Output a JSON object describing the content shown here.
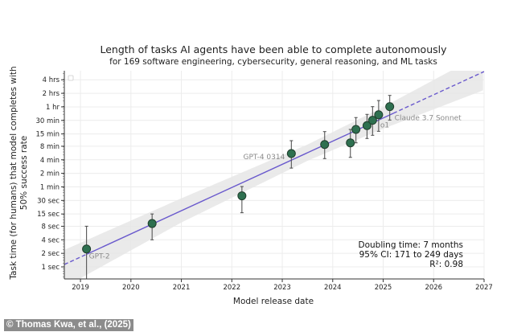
{
  "chart_data": {
    "type": "scatter",
    "title": "Length of tasks AI agents have been able to complete autonomously",
    "subtitle": "for 169 software engineering, cybersecurity, general reasoning, and ML tasks",
    "xlabel": "Model release date",
    "ylabel": [
      "Task time (for humans) that model completes with",
      "50% success rate"
    ],
    "xlim": [
      2018.68,
      2027
    ],
    "ylim_seconds": [
      0.54,
      22900
    ],
    "y_scale": "log",
    "grid": true,
    "x_ticks": [
      2019,
      2020,
      2021,
      2022,
      2023,
      2024,
      2025,
      2026,
      2027
    ],
    "y_ticks": [
      {
        "label": "4 hrs",
        "seconds": 14400
      },
      {
        "label": "2 hrs",
        "seconds": 7200
      },
      {
        "label": "1 hr",
        "seconds": 3600
      },
      {
        "label": "30 min",
        "seconds": 1800
      },
      {
        "label": "15 min",
        "seconds": 900
      },
      {
        "label": "8 min",
        "seconds": 480
      },
      {
        "label": "4 min",
        "seconds": 240
      },
      {
        "label": "2 min",
        "seconds": 120
      },
      {
        "label": "1 min",
        "seconds": 60
      },
      {
        "label": "30 sec",
        "seconds": 30
      },
      {
        "label": "15 sec",
        "seconds": 15
      },
      {
        "label": "8 sec",
        "seconds": 8
      },
      {
        "label": "4 sec",
        "seconds": 4
      },
      {
        "label": "2 sec",
        "seconds": 2
      },
      {
        "label": "1 sec",
        "seconds": 1
      }
    ],
    "points": [
      {
        "x": 2019.12,
        "seconds": 2.5,
        "low": 0.5,
        "high": 8,
        "label": "GPT-2"
      },
      {
        "x": 2020.42,
        "seconds": 9.2,
        "low": 4,
        "high": 15
      },
      {
        "x": 2022.2,
        "seconds": 38,
        "low": 16,
        "high": 61
      },
      {
        "x": 2023.18,
        "seconds": 330,
        "low": 157,
        "high": 638,
        "label": "GPT-4 0314"
      },
      {
        "x": 2023.84,
        "seconds": 525,
        "low": 255,
        "high": 1016
      },
      {
        "x": 2024.35,
        "seconds": 571,
        "low": 272,
        "high": 1135
      },
      {
        "x": 2024.46,
        "seconds": 1135,
        "low": 572,
        "high": 2080
      },
      {
        "x": 2024.68,
        "seconds": 1380,
        "low": 714,
        "high": 2450
      },
      {
        "x": 2024.79,
        "seconds": 1810,
        "low": 840,
        "high": 3640
      },
      {
        "x": 2024.91,
        "seconds": 2405,
        "low": 1030,
        "high": 4980,
        "label": "o1"
      },
      {
        "x": 2025.13,
        "seconds": 3640,
        "low": 1830,
        "high": 6470,
        "label": "Claude 3.7 Sonnet"
      }
    ],
    "trend": {
      "start": [
        2018.68,
        1.13
      ],
      "end": [
        2027,
        21900
      ],
      "solid_range": [
        2019.12,
        2025.2
      ]
    },
    "confidence_band": [
      {
        "x": 2018.68,
        "low": 0.354,
        "high": 2.38
      },
      {
        "x": 2021,
        "low": 9.7,
        "high": 33.4
      },
      {
        "x": 2023.5,
        "low": 228,
        "high": 523
      },
      {
        "x": 2025,
        "low": 1176,
        "high": 3566
      },
      {
        "x": 2027,
        "low": 8540,
        "high": 57000
      }
    ],
    "annotation": [
      "Doubling time: 7 months",
      "95% CI: 171 to 249 days",
      "R²: 0.98"
    ],
    "legend_placement": "top-left",
    "colors": {
      "point": "#2e7050",
      "point_edge": "#1f3d2c",
      "trend": "#6a5acd",
      "band": "#e6e6e6",
      "grid": "#ececec",
      "errorbar": "#555555"
    }
  },
  "credit": "© Thomas Kwa, et al., (2025)"
}
